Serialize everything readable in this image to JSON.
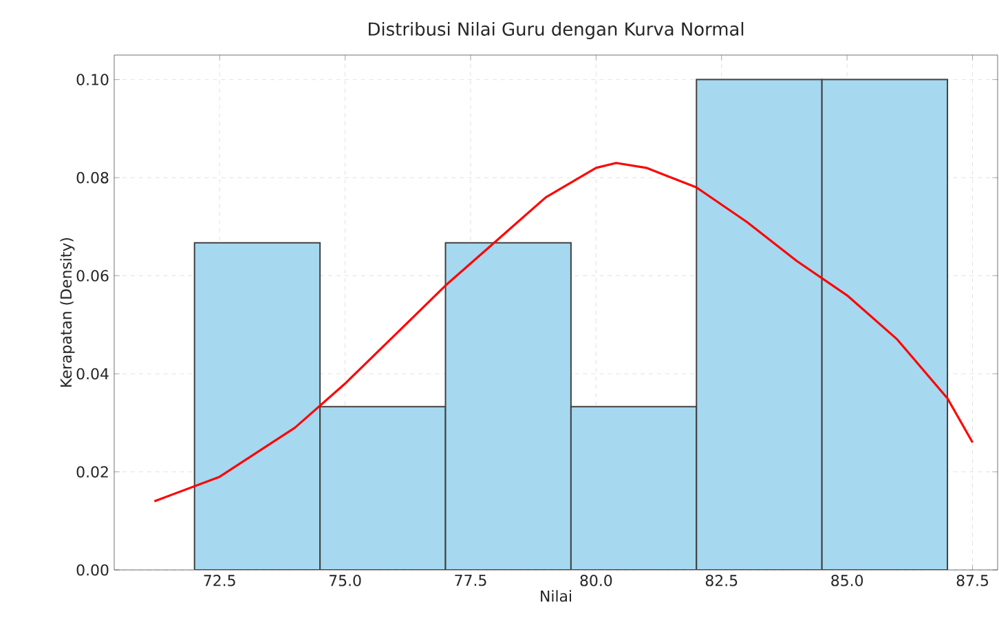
{
  "chart_data": {
    "type": "histogram",
    "title": "Distribusi Nilai Guru dengan Kurva Normal",
    "xlabel": "Nilai",
    "ylabel": "Kerapatan (Density)",
    "bins": [
      72,
      74.5,
      77,
      79.5,
      82,
      84.5,
      87
    ],
    "values": [
      0.0667,
      0.0333,
      0.0667,
      0.0333,
      0.1,
      0.1
    ],
    "color": "#a6d8ef",
    "series": [
      {
        "type": "line",
        "color": "#ff0000",
        "x": [
          71.2,
          72.5,
          74,
          75,
          76,
          77,
          78,
          79,
          80,
          80.4,
          81,
          82,
          83,
          84,
          85,
          86,
          87,
          87.5
        ],
        "values": [
          0.014,
          0.019,
          0.029,
          0.038,
          0.048,
          0.058,
          0.067,
          0.076,
          0.082,
          0.083,
          0.082,
          0.078,
          0.071,
          0.063,
          0.056,
          0.047,
          0.035,
          0.026
        ]
      }
    ],
    "xlim": [
      70.4,
      88.0
    ],
    "xticks": [
      {
        "value": 72.5,
        "label": "72.5"
      },
      {
        "value": 75,
        "label": "75.0"
      },
      {
        "value": 77.5,
        "label": "77.5"
      },
      {
        "value": 80,
        "label": "80.0"
      },
      {
        "value": 82.5,
        "label": "82.5"
      },
      {
        "value": 85,
        "label": "85.0"
      },
      {
        "value": 87.5,
        "label": "87.5"
      }
    ],
    "ylim": [
      0,
      0.105
    ],
    "yticks": [
      {
        "value": 0,
        "label": "0.00"
      },
      {
        "value": 0.02,
        "label": "0.02"
      },
      {
        "value": 0.04,
        "label": "0.04"
      },
      {
        "value": 0.06,
        "label": "0.06"
      },
      {
        "value": 0.08,
        "label": "0.08"
      },
      {
        "value": 0.1,
        "label": "0.10"
      }
    ],
    "grid": true
  }
}
